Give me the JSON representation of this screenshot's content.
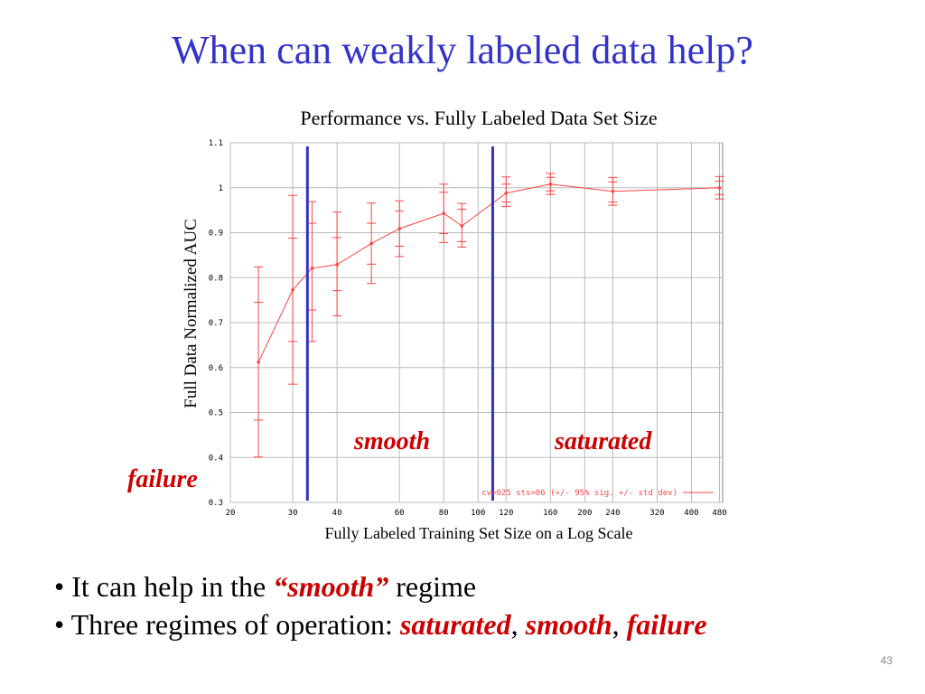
{
  "title": "When can weakly labeled data help?",
  "chart_data": {
    "type": "line",
    "title": "Performance vs. Fully Labeled Data Set Size",
    "xlabel": "Fully Labeled Training Set Size on a Log Scale",
    "ylabel": "Full Data Normalized AUC",
    "x_scale": "log",
    "xlim": [
      20,
      490
    ],
    "ylim": [
      0.3,
      1.1
    ],
    "x_ticks": [
      20,
      30,
      40,
      60,
      80,
      100,
      120,
      160,
      200,
      240,
      320,
      400,
      480
    ],
    "y_ticks": [
      0.3,
      0.4,
      0.5,
      0.6,
      0.7,
      0.8,
      0.9,
      1,
      1.1
    ],
    "x_tick_labels": [
      "20",
      "30",
      "40",
      "60",
      "80",
      "100",
      "120",
      "160",
      "200",
      "240",
      "320",
      "400",
      "480"
    ],
    "y_tick_labels": [
      "0.3",
      "0.4",
      "0.5",
      "0.6",
      "0.7",
      "0.8",
      "0.9",
      "1",
      "1.1"
    ],
    "grid": true,
    "legend_text": "cv=025 sts=06 (+/- 95% sig. +/- std dev)",
    "legend_position": "bottom-right",
    "series_color": "#ff4444",
    "regime_line_color": "#3333bb",
    "series": [
      {
        "x": [
          24,
          30,
          34,
          40,
          50,
          60,
          80,
          90,
          120,
          160,
          240,
          480
        ],
        "y": [
          0.612,
          0.773,
          0.821,
          0.829,
          0.876,
          0.909,
          0.943,
          0.915,
          0.988,
          1.008,
          0.992,
          1.0
        ],
        "std_low": [
          0.483,
          0.658,
          0.728,
          0.771,
          0.83,
          0.87,
          0.898,
          0.88,
          0.968,
          0.993,
          0.968,
          0.985
        ],
        "std_high": [
          0.745,
          0.888,
          0.921,
          0.889,
          0.921,
          0.948,
          0.99,
          0.952,
          1.008,
          1.023,
          1.013,
          1.015
        ],
        "ci_low": [
          0.401,
          0.563,
          0.658,
          0.715,
          0.787,
          0.847,
          0.878,
          0.868,
          0.958,
          0.985,
          0.961,
          0.975
        ],
        "ci_high": [
          0.824,
          0.983,
          0.969,
          0.946,
          0.966,
          0.971,
          1.008,
          0.965,
          1.024,
          1.032,
          1.023,
          1.025
        ]
      }
    ],
    "vertical_lines": [
      {
        "x": 33
      },
      {
        "x": 110
      }
    ],
    "annotations": [
      {
        "text": "failure"
      },
      {
        "text": "smooth"
      },
      {
        "text": "saturated"
      }
    ]
  },
  "bullets": {
    "b1_prefix": "It can help in the ",
    "b1_em": "“smooth”",
    "b1_suffix": " regime",
    "b2_prefix": "Three regimes of operation: ",
    "b2_em1": "saturated",
    "comma": ",",
    "b2_em2": "smooth",
    "b2_em3": "failure"
  },
  "page_number": "43"
}
